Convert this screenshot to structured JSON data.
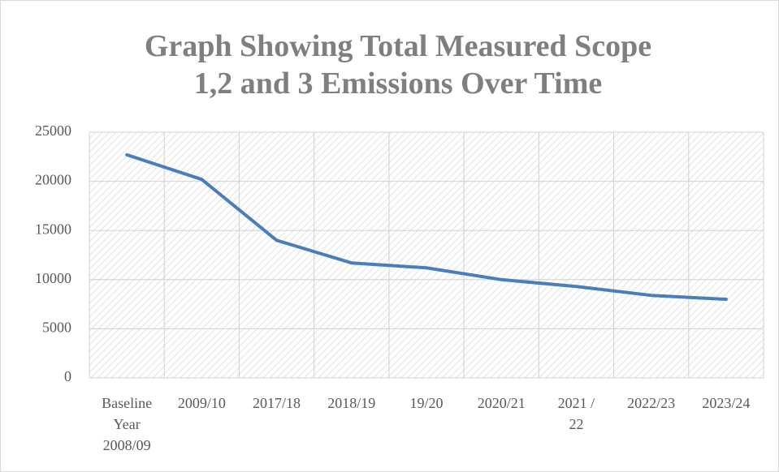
{
  "chart_data": {
    "type": "line",
    "title": "Graph Showing Total Measured Scope 1,2 and 3 Emissions Over Time",
    "categories": [
      "Baseline Year 2008/09",
      "2009/10",
      "2017/18",
      "2018/19",
      "19/20",
      "2020/21",
      "2021 / 22",
      "2022/23",
      "2023/24"
    ],
    "series": [
      {
        "name": "Total Measured Scope 1,2 and 3 Emissions",
        "color": "#4a7ebb",
        "values": [
          22700,
          20200,
          14000,
          11700,
          11200,
          10000,
          9300,
          8400,
          8000
        ]
      }
    ],
    "ylim": [
      0,
      25000
    ],
    "yticks": [
      0,
      5000,
      10000,
      15000,
      20000,
      25000
    ],
    "grid": true
  }
}
